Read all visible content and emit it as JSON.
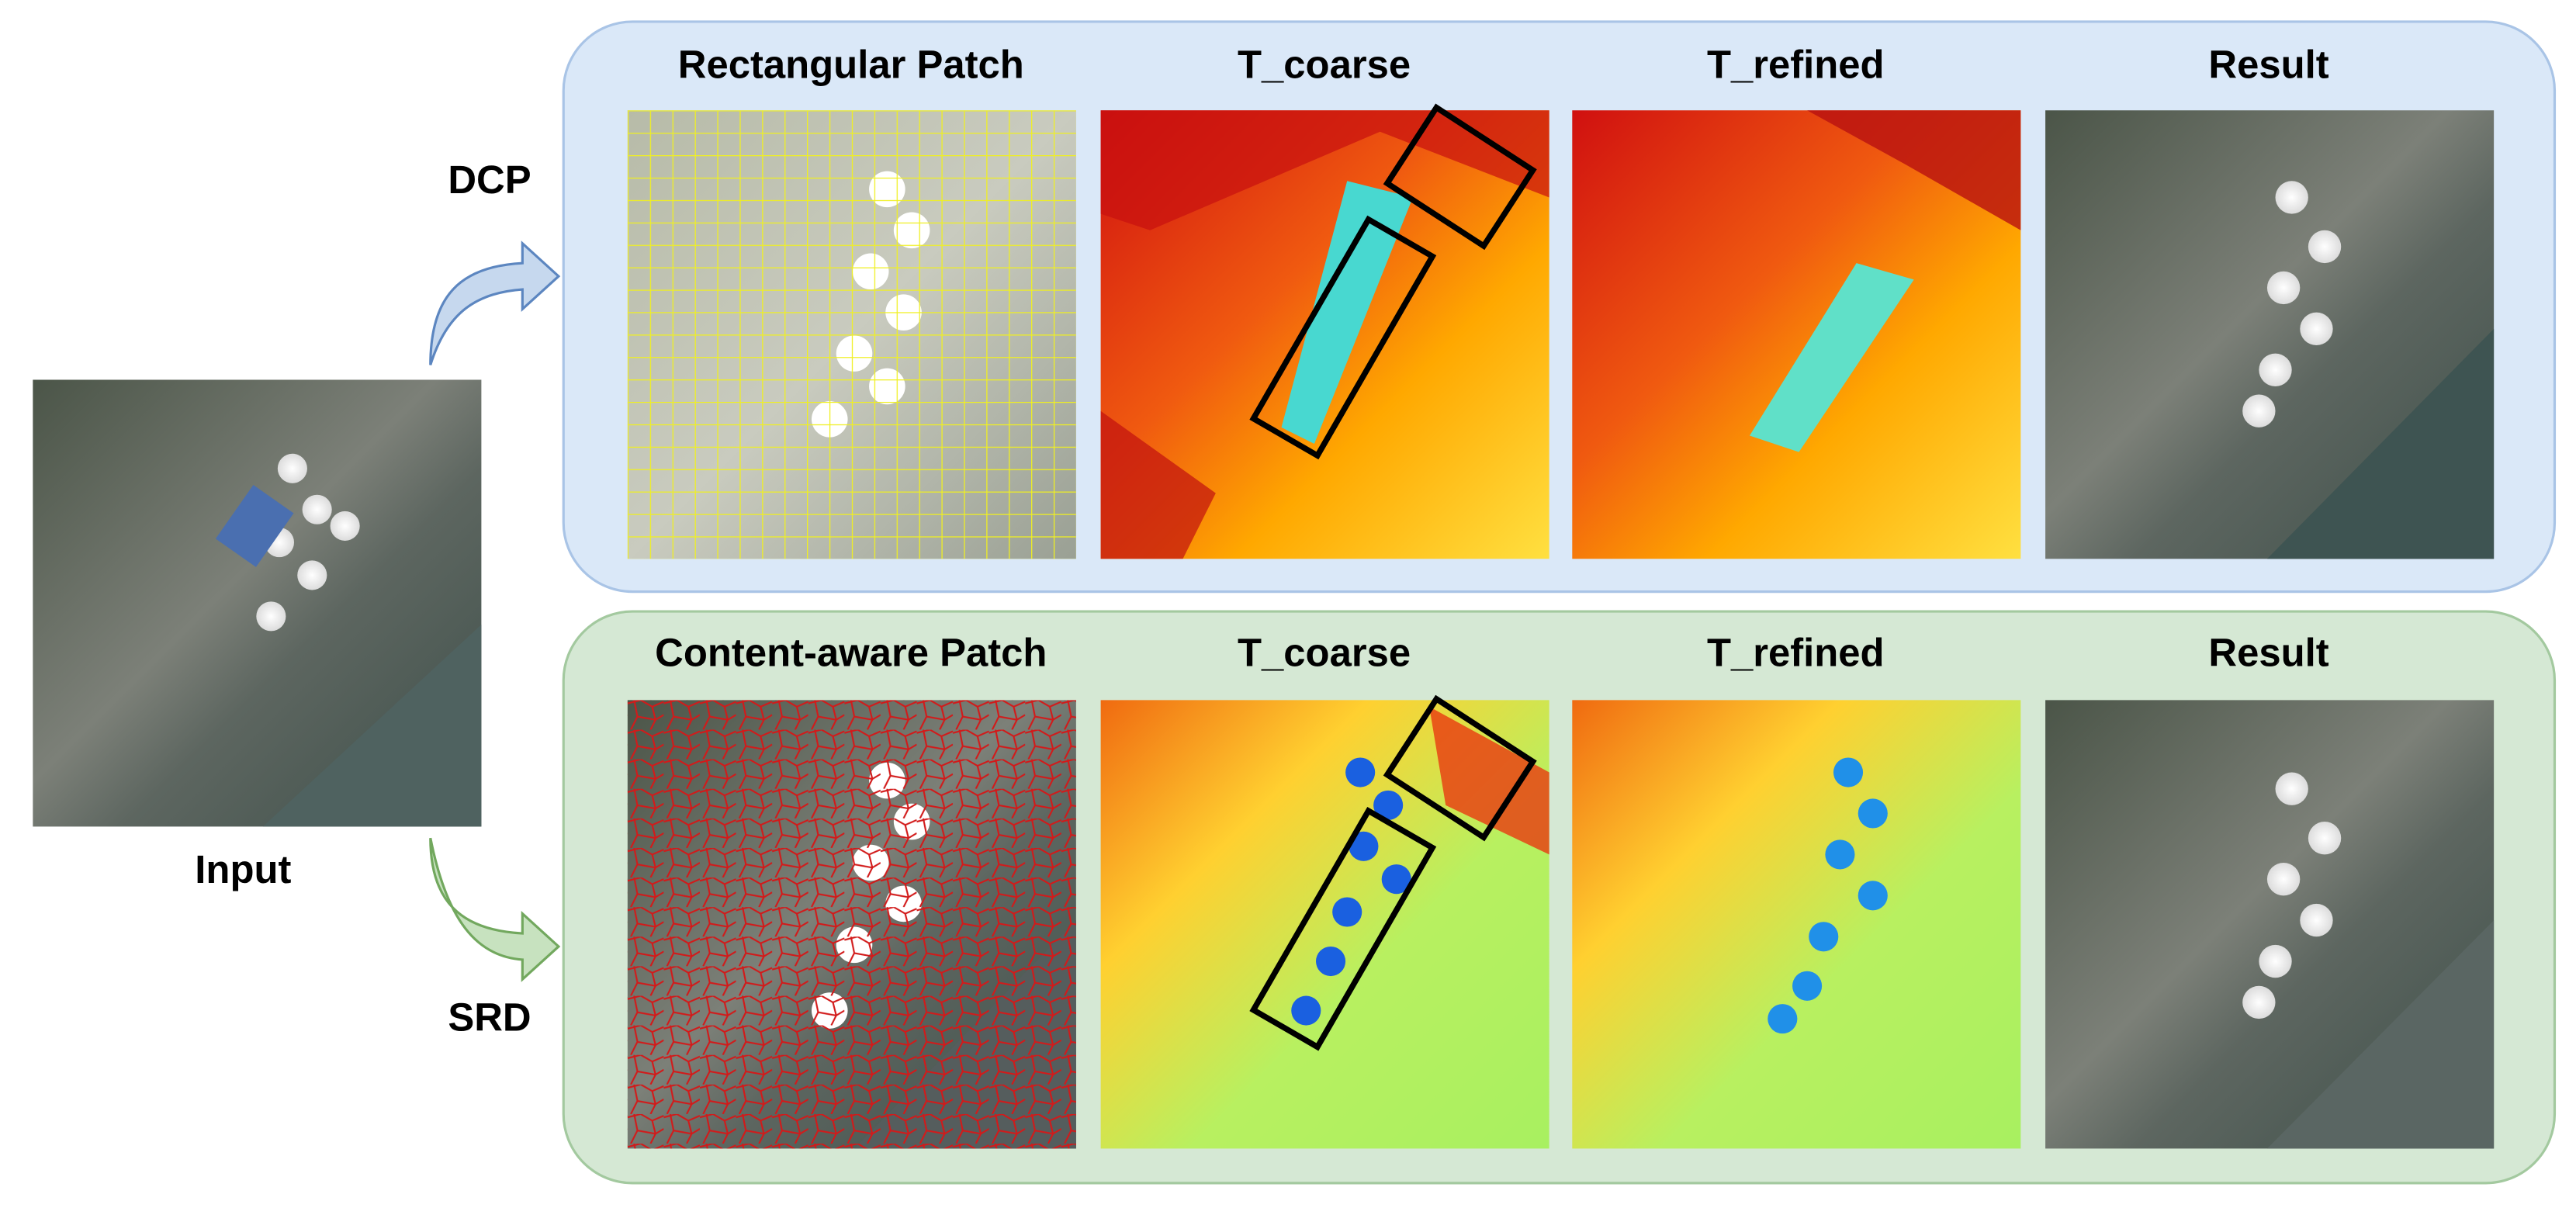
{
  "input": {
    "label": "Input"
  },
  "rows": [
    {
      "method": "DCP",
      "columns": [
        "Rectangular Patch",
        "T_coarse",
        "T_refined",
        "Result"
      ]
    },
    {
      "method": "SRD",
      "columns": [
        "Content-aware Patch",
        "T_coarse",
        "T_refined",
        "Result"
      ]
    }
  ]
}
